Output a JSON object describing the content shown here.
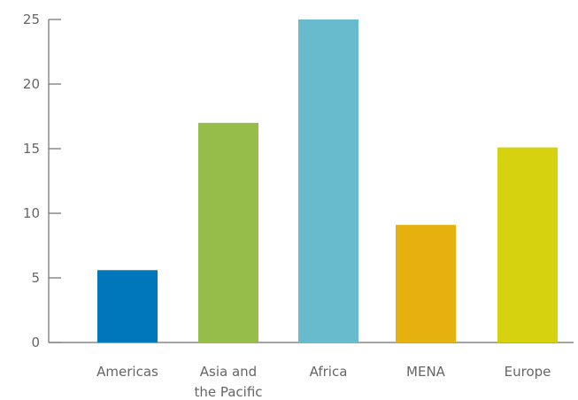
{
  "chart_data": {
    "type": "bar",
    "categories": [
      "Americas",
      "Asia and the Pacific",
      "Africa",
      "MENA",
      "Europe"
    ],
    "category_label_lines": [
      [
        "Americas"
      ],
      [
        "Asia and",
        "the Pacific"
      ],
      [
        "Africa"
      ],
      [
        "MENA"
      ],
      [
        "Europe"
      ]
    ],
    "values": [
      5.6,
      17,
      25,
      9.1,
      15.1
    ],
    "colors": [
      "#0077bb",
      "#96bd49",
      "#68bbcc",
      "#e6b10f",
      "#d7d20f"
    ],
    "ylim": [
      0,
      25
    ],
    "yticks": [
      0,
      5,
      10,
      15,
      20,
      25
    ],
    "grid": false,
    "title": "",
    "xlabel": "",
    "ylabel": ""
  }
}
